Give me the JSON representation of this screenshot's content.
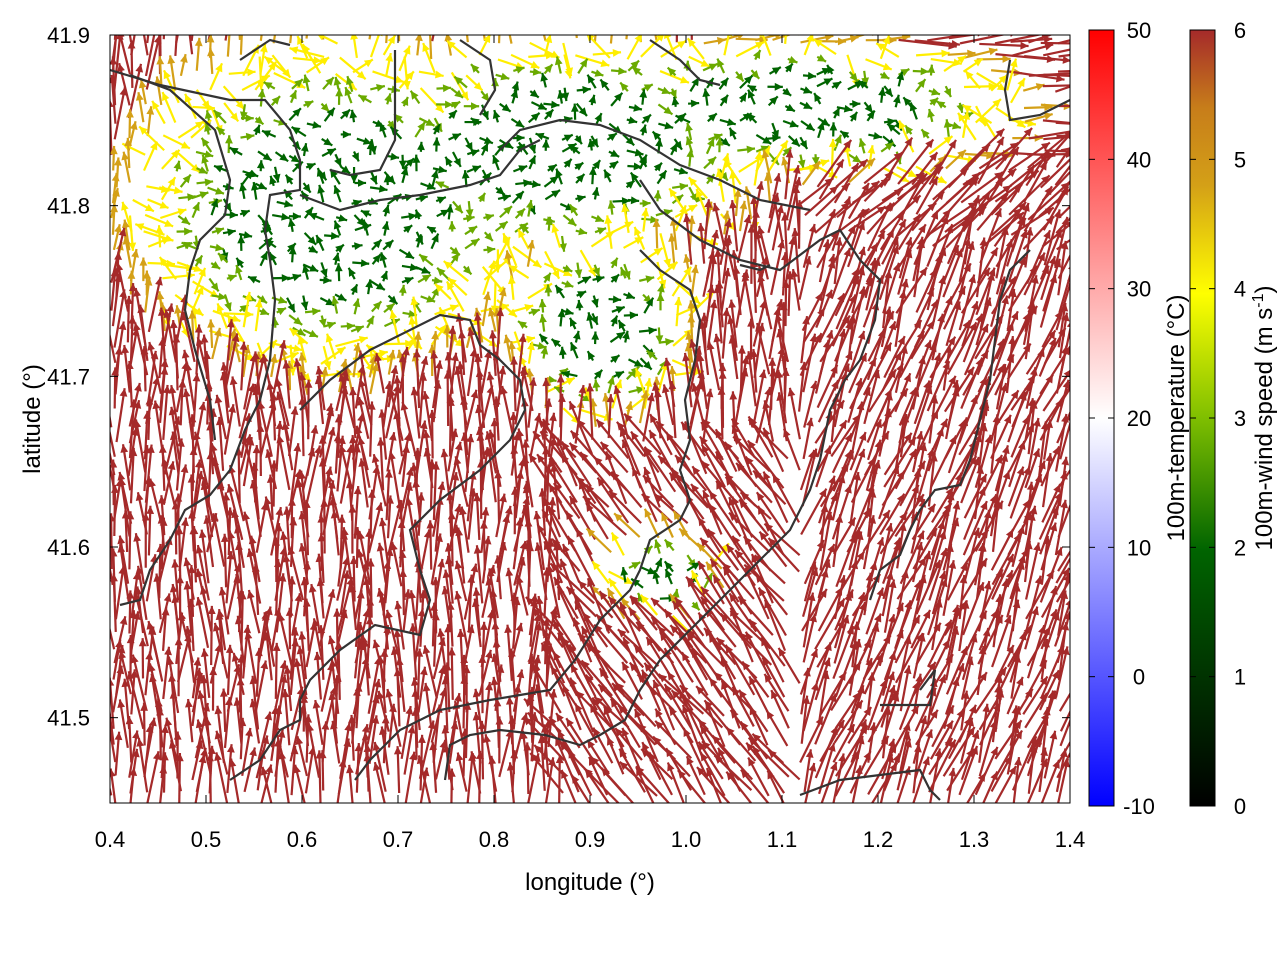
{
  "chart_data": {
    "type": "quiver",
    "xlabel": "longitude (°)",
    "ylabel": "latitude (°)",
    "xlim": [
      0.4,
      1.4
    ],
    "ylim": [
      41.45,
      41.9
    ],
    "xticks": [
      "0.4",
      "0.5",
      "0.6",
      "0.7",
      "0.8",
      "0.9",
      "1.0",
      "1.1",
      "1.2",
      "1.3",
      "1.4"
    ],
    "yticks": [
      "41.5",
      "41.6",
      "41.7",
      "41.8",
      "41.9"
    ],
    "colorbars": [
      {
        "label": "100m-temperature (°C)",
        "range": [
          -10,
          50
        ],
        "ticks": [
          "-10",
          "0",
          "10",
          "20",
          "30",
          "40",
          "50"
        ],
        "colors": [
          "#0000ff",
          "#ffffff",
          "#ff0000"
        ]
      },
      {
        "label_main": "100m-wind speed (m s",
        "label_sup": "-1",
        "label_end": ")",
        "range": [
          0,
          6
        ],
        "ticks": [
          "0",
          "1",
          "2",
          "3",
          "4",
          "5",
          "6"
        ],
        "colors": [
          "#000000",
          "#006400",
          "#7fbf00",
          "#ffff00",
          "#d4a017",
          "#c77d1a",
          "#a52a2a"
        ]
      }
    ],
    "arrow_color_strong": "#a52a2a",
    "arrow_color_mid": "#d4a017",
    "arrow_color_light": "#ffee00",
    "arrow_color_weak": "#6aaa00",
    "arrow_color_calm": "#006400",
    "contour_color": "#333333"
  }
}
